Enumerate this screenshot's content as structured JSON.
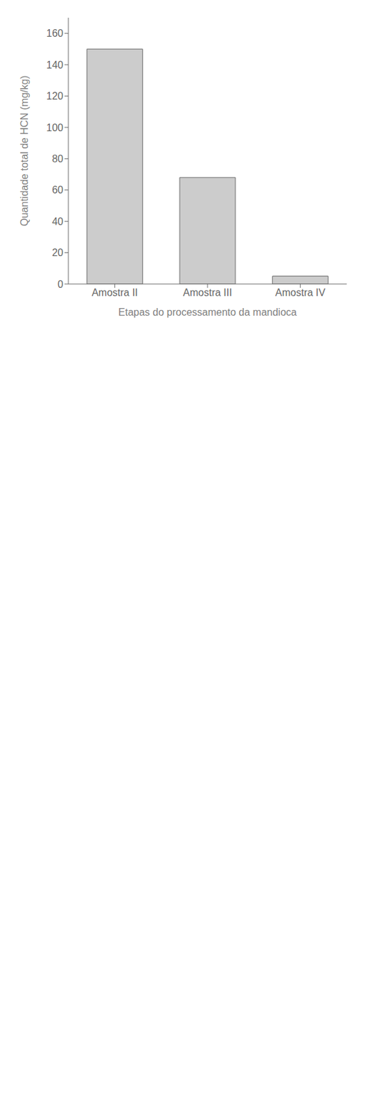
{
  "chart_data": {
    "type": "bar",
    "categories": [
      "Amostra II",
      "Amostra III",
      "Amostra IV"
    ],
    "values": [
      150,
      68,
      5
    ],
    "color": "#cccccc",
    "xlabel": "Etapas do processamento da mandioca",
    "ylabel": "Quantidade total de HCN (mg/kg)",
    "ylim": [
      0,
      170
    ],
    "yticks": [
      0,
      20,
      40,
      60,
      80,
      100,
      120,
      140,
      160
    ],
    "grid": false
  }
}
